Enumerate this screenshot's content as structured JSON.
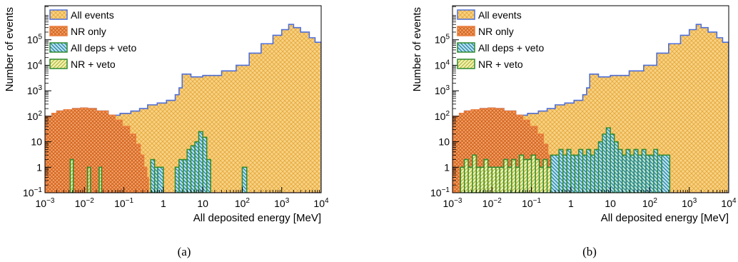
{
  "chart_data": [
    {
      "type": "histogram",
      "caption": "(a)",
      "xlabel": "All deposited energy [MeV]",
      "ylabel": "Number of events",
      "x_scale": "log",
      "y_scale": "log",
      "xlim": [
        0.001,
        10000
      ],
      "ylim": [
        0.1,
        1000000
      ],
      "x_ticks": [
        {
          "b": "10",
          "e": "−3"
        },
        {
          "b": "10",
          "e": "−2"
        },
        {
          "b": "10",
          "e": "−1"
        },
        {
          "b": "1",
          "e": ""
        },
        {
          "b": "10",
          "e": ""
        },
        {
          "b": "10",
          "e": "2"
        },
        {
          "b": "10",
          "e": "3"
        },
        {
          "b": "10",
          "e": "4"
        }
      ],
      "y_ticks": [
        {
          "b": "10",
          "e": "−1"
        },
        {
          "b": "1",
          "e": ""
        },
        {
          "b": "10",
          "e": ""
        },
        {
          "b": "10",
          "e": "2"
        },
        {
          "b": "10",
          "e": "3"
        },
        {
          "b": "10",
          "e": "4"
        },
        {
          "b": "10",
          "e": "5"
        }
      ],
      "legend_position": "top-left",
      "legend": [
        "All events",
        "NR only",
        "All deps + veto",
        "NR + veto"
      ],
      "series": [
        {
          "name": "All events",
          "color": "#f5c469",
          "edge": "#4f6fd8",
          "points": [
            [
              0.001,
              0.1
            ],
            [
              0.00105,
              100
            ],
            [
              0.0015,
              130
            ],
            [
              0.002,
              160
            ],
            [
              0.003,
              180
            ],
            [
              0.005,
              200
            ],
            [
              0.008,
              210
            ],
            [
              0.012,
              200
            ],
            [
              0.02,
              160
            ],
            [
              0.04,
              110
            ],
            [
              0.08,
              130
            ],
            [
              0.15,
              160
            ],
            [
              0.25,
              200
            ],
            [
              0.4,
              280
            ],
            [
              0.7,
              330
            ],
            [
              1.2,
              420
            ],
            [
              2,
              700
            ],
            [
              2.5,
              1300
            ],
            [
              3,
              4500
            ],
            [
              5,
              3500
            ],
            [
              10,
              4000
            ],
            [
              30,
              6000
            ],
            [
              70,
              10000
            ],
            [
              150,
              30000
            ],
            [
              300,
              70000
            ],
            [
              600,
              150000
            ],
            [
              1000,
              250000
            ],
            [
              1500,
              400000
            ],
            [
              2000,
              300000
            ],
            [
              3000,
              200000
            ],
            [
              5000,
              120000
            ],
            [
              7000,
              80000
            ],
            [
              10000,
              50000
            ]
          ]
        },
        {
          "name": "NR only",
          "color": "#ea7d3c",
          "edge": "#ea7d3c",
          "points": [
            [
              0.001,
              0.1
            ],
            [
              0.00105,
              100
            ],
            [
              0.0015,
              130
            ],
            [
              0.002,
              160
            ],
            [
              0.003,
              180
            ],
            [
              0.005,
              200
            ],
            [
              0.008,
              210
            ],
            [
              0.012,
              200
            ],
            [
              0.02,
              160
            ],
            [
              0.04,
              110
            ],
            [
              0.06,
              70
            ],
            [
              0.09,
              40
            ],
            [
              0.14,
              20
            ],
            [
              0.2,
              8
            ],
            [
              0.26,
              3
            ],
            [
              0.32,
              1
            ],
            [
              0.38,
              0.4
            ],
            [
              0.42,
              0.1
            ]
          ]
        },
        {
          "name": "All deps + veto",
          "color": "#2a9bc4",
          "edge": "#2e8b2e",
          "bins": [
            [
              0.0044,
              0.0052,
              2
            ],
            [
              0.0121,
              0.0141,
              1
            ],
            [
              0.0237,
              0.0272,
              1
            ],
            [
              0.48,
              0.6,
              2
            ],
            [
              0.6,
              0.72,
              1
            ],
            [
              0.72,
              1.0,
              1
            ],
            [
              2.0,
              2.5,
              1
            ],
            [
              2.5,
              3.2,
              2
            ],
            [
              3.2,
              4.0,
              2
            ],
            [
              4.0,
              5.0,
              5
            ],
            [
              5.0,
              6.3,
              7
            ],
            [
              6.3,
              7.9,
              10
            ],
            [
              7.9,
              10.0,
              25
            ],
            [
              10.0,
              12.6,
              15
            ],
            [
              12.6,
              15.8,
              2
            ],
            [
              100,
              130,
              1
            ]
          ]
        },
        {
          "name": "NR + veto",
          "color": "#e5e66a",
          "edge": "#2e8b2e",
          "bins": [
            [
              0.0044,
              0.0052,
              2
            ],
            [
              0.0121,
              0.0141,
              1
            ],
            [
              0.0237,
              0.0272,
              1
            ]
          ]
        }
      ]
    },
    {
      "type": "histogram",
      "caption": "(b)",
      "xlabel": "All deposited energy [MeV]",
      "ylabel": "Number of events",
      "x_scale": "log",
      "y_scale": "log",
      "xlim": [
        0.001,
        10000
      ],
      "ylim": [
        0.1,
        1000000
      ],
      "x_ticks": [
        {
          "b": "10",
          "e": "−3"
        },
        {
          "b": "10",
          "e": "−2"
        },
        {
          "b": "10",
          "e": "−1"
        },
        {
          "b": "1",
          "e": ""
        },
        {
          "b": "10",
          "e": ""
        },
        {
          "b": "10",
          "e": "2"
        },
        {
          "b": "10",
          "e": "3"
        },
        {
          "b": "10",
          "e": "4"
        }
      ],
      "y_ticks": [
        {
          "b": "10",
          "e": "−1"
        },
        {
          "b": "1",
          "e": ""
        },
        {
          "b": "10",
          "e": ""
        },
        {
          "b": "10",
          "e": "2"
        },
        {
          "b": "10",
          "e": "3"
        },
        {
          "b": "10",
          "e": "4"
        },
        {
          "b": "10",
          "e": "5"
        }
      ],
      "legend_position": "top-left",
      "legend": [
        "All events",
        "NR only",
        "All deps + veto",
        "NR + veto"
      ],
      "series": [
        {
          "name": "All events",
          "color": "#f5c469",
          "edge": "#4f6fd8",
          "points": [
            [
              0.001,
              0.1
            ],
            [
              0.00105,
              100
            ],
            [
              0.0015,
              130
            ],
            [
              0.002,
              160
            ],
            [
              0.003,
              180
            ],
            [
              0.005,
              200
            ],
            [
              0.008,
              210
            ],
            [
              0.012,
              200
            ],
            [
              0.02,
              160
            ],
            [
              0.04,
              110
            ],
            [
              0.08,
              130
            ],
            [
              0.15,
              160
            ],
            [
              0.25,
              200
            ],
            [
              0.4,
              280
            ],
            [
              0.7,
              330
            ],
            [
              1.2,
              420
            ],
            [
              2,
              700
            ],
            [
              2.5,
              1300
            ],
            [
              3,
              4500
            ],
            [
              5,
              3500
            ],
            [
              10,
              4000
            ],
            [
              30,
              6000
            ],
            [
              70,
              10000
            ],
            [
              150,
              30000
            ],
            [
              300,
              70000
            ],
            [
              600,
              150000
            ],
            [
              1000,
              250000
            ],
            [
              1500,
              400000
            ],
            [
              2000,
              300000
            ],
            [
              3000,
              200000
            ],
            [
              5000,
              120000
            ],
            [
              7000,
              80000
            ],
            [
              10000,
              50000
            ]
          ]
        },
        {
          "name": "NR only",
          "color": "#ea7d3c",
          "edge": "#ea7d3c",
          "points": [
            [
              0.001,
              0.1
            ],
            [
              0.00105,
              100
            ],
            [
              0.0015,
              130
            ],
            [
              0.002,
              160
            ],
            [
              0.003,
              180
            ],
            [
              0.005,
              200
            ],
            [
              0.008,
              210
            ],
            [
              0.012,
              200
            ],
            [
              0.02,
              160
            ],
            [
              0.04,
              110
            ],
            [
              0.06,
              70
            ],
            [
              0.09,
              40
            ],
            [
              0.14,
              20
            ],
            [
              0.2,
              8
            ],
            [
              0.26,
              3
            ],
            [
              0.32,
              1
            ],
            [
              0.38,
              0.4
            ],
            [
              0.42,
              0.1
            ]
          ]
        },
        {
          "name": "All deps + veto",
          "color": "#2a9bc4",
          "edge": "#2e8b2e",
          "bins": [
            [
              0.0016,
              0.002,
              1
            ],
            [
              0.002,
              0.0025,
              2
            ],
            [
              0.0025,
              0.0032,
              1
            ],
            [
              0.0032,
              0.004,
              3
            ],
            [
              0.004,
              0.005,
              1
            ],
            [
              0.005,
              0.0063,
              1
            ],
            [
              0.0063,
              0.0079,
              2
            ],
            [
              0.0079,
              0.01,
              1
            ],
            [
              0.01,
              0.0126,
              1
            ],
            [
              0.0126,
              0.0158,
              1
            ],
            [
              0.0158,
              0.02,
              1
            ],
            [
              0.02,
              0.0251,
              2
            ],
            [
              0.0251,
              0.0316,
              1
            ],
            [
              0.0316,
              0.0398,
              2
            ],
            [
              0.0398,
              0.05,
              1
            ],
            [
              0.05,
              0.063,
              3
            ],
            [
              0.063,
              0.079,
              2
            ],
            [
              0.079,
              0.1,
              2
            ],
            [
              0.1,
              0.126,
              3
            ],
            [
              0.126,
              0.158,
              2
            ],
            [
              0.158,
              0.2,
              1
            ],
            [
              0.2,
              0.25,
              2
            ],
            [
              0.25,
              0.31,
              1
            ],
            [
              0.31,
              0.5,
              3
            ],
            [
              0.5,
              0.63,
              5
            ],
            [
              0.63,
              0.79,
              3
            ],
            [
              0.79,
              1.0,
              5
            ],
            [
              1.0,
              1.26,
              3
            ],
            [
              1.26,
              1.58,
              3
            ],
            [
              1.58,
              2.0,
              5
            ],
            [
              2.0,
              2.5,
              3
            ],
            [
              2.5,
              3.16,
              5
            ],
            [
              3.16,
              3.98,
              3
            ],
            [
              3.98,
              5.0,
              5
            ],
            [
              5.0,
              6.3,
              10
            ],
            [
              6.3,
              7.9,
              20
            ],
            [
              7.9,
              10.0,
              35
            ],
            [
              10.0,
              12.6,
              20
            ],
            [
              12.6,
              15.8,
              10
            ],
            [
              15.8,
              20.0,
              5
            ],
            [
              20.0,
              25.1,
              3
            ],
            [
              25.1,
              31.6,
              5
            ],
            [
              31.6,
              39.8,
              3
            ],
            [
              39.8,
              50.1,
              5
            ],
            [
              50.1,
              63.1,
              3
            ],
            [
              63.1,
              79.4,
              5
            ],
            [
              79.4,
              100,
              3
            ],
            [
              100,
              126,
              3
            ],
            [
              126,
              158,
              5
            ],
            [
              158,
              200,
              3
            ],
            [
              200,
              320,
              3
            ]
          ]
        },
        {
          "name": "NR + veto",
          "color": "#e5e66a",
          "edge": "#2e8b2e",
          "bins": [
            [
              0.0016,
              0.002,
              1
            ],
            [
              0.002,
              0.0025,
              2
            ],
            [
              0.0025,
              0.0032,
              1
            ],
            [
              0.0032,
              0.004,
              3
            ],
            [
              0.004,
              0.005,
              1
            ],
            [
              0.005,
              0.0063,
              1
            ],
            [
              0.0063,
              0.0079,
              2
            ],
            [
              0.0079,
              0.01,
              1
            ],
            [
              0.01,
              0.0126,
              1
            ],
            [
              0.0126,
              0.0158,
              1
            ],
            [
              0.0158,
              0.02,
              1
            ],
            [
              0.02,
              0.0251,
              2
            ],
            [
              0.0251,
              0.0316,
              1
            ],
            [
              0.0316,
              0.0398,
              2
            ],
            [
              0.0398,
              0.05,
              1
            ],
            [
              0.05,
              0.063,
              3
            ],
            [
              0.063,
              0.079,
              2
            ],
            [
              0.079,
              0.1,
              2
            ],
            [
              0.1,
              0.126,
              3
            ],
            [
              0.126,
              0.158,
              2
            ],
            [
              0.158,
              0.2,
              1
            ],
            [
              0.2,
              0.25,
              2
            ],
            [
              0.25,
              0.31,
              1
            ]
          ]
        }
      ]
    }
  ]
}
